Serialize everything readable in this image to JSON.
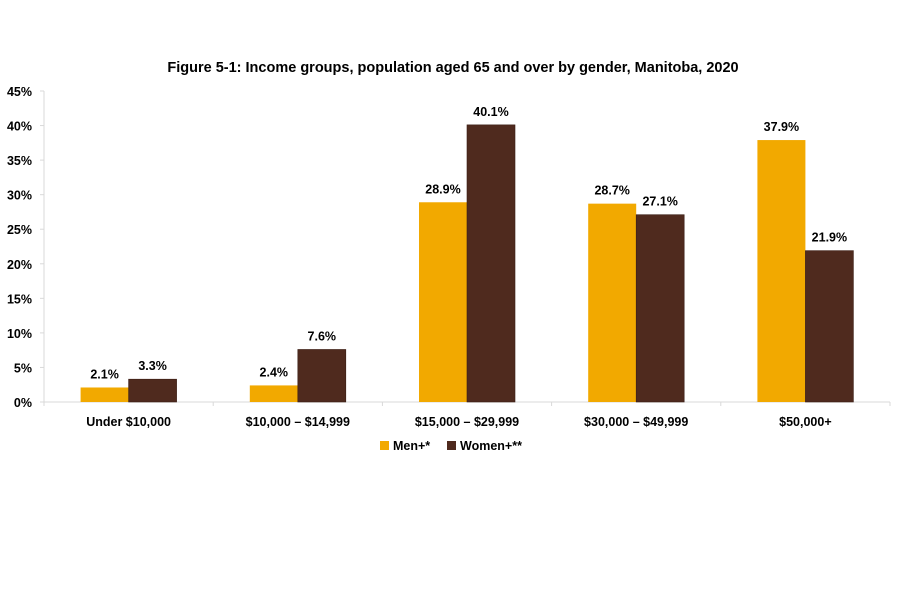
{
  "chart_data": {
    "type": "bar",
    "title": "Figure 5-1: Income groups, population aged 65 and over by gender, Manitoba, 2020",
    "xlabel": "",
    "ylabel": "",
    "ylim": [
      0,
      45
    ],
    "yticks": [
      "0%",
      "5%",
      "10%",
      "15%",
      "20%",
      "25%",
      "30%",
      "35%",
      "40%",
      "45%"
    ],
    "ytick_values": [
      0,
      5,
      10,
      15,
      20,
      25,
      30,
      35,
      40,
      45
    ],
    "grid": false,
    "legend_position": "bottom",
    "categories": [
      "Under $10,000",
      "$10,000 – $14,999",
      "$15,000 – $29,999",
      "$30,000 – $49,999",
      "$50,000+"
    ],
    "series": [
      {
        "name": "Men+*",
        "color": "#F2A900",
        "values": [
          2.1,
          2.4,
          28.9,
          28.7,
          37.9
        ],
        "labels": [
          "2.1%",
          "2.4%",
          "28.9%",
          "28.7%",
          "37.9%"
        ]
      },
      {
        "name": "Women+**",
        "color": "#4F2A1E",
        "values": [
          3.3,
          7.6,
          40.1,
          27.1,
          21.9
        ],
        "labels": [
          "3.3%",
          "7.6%",
          "40.1%",
          "27.1%",
          "21.9%"
        ]
      }
    ]
  }
}
